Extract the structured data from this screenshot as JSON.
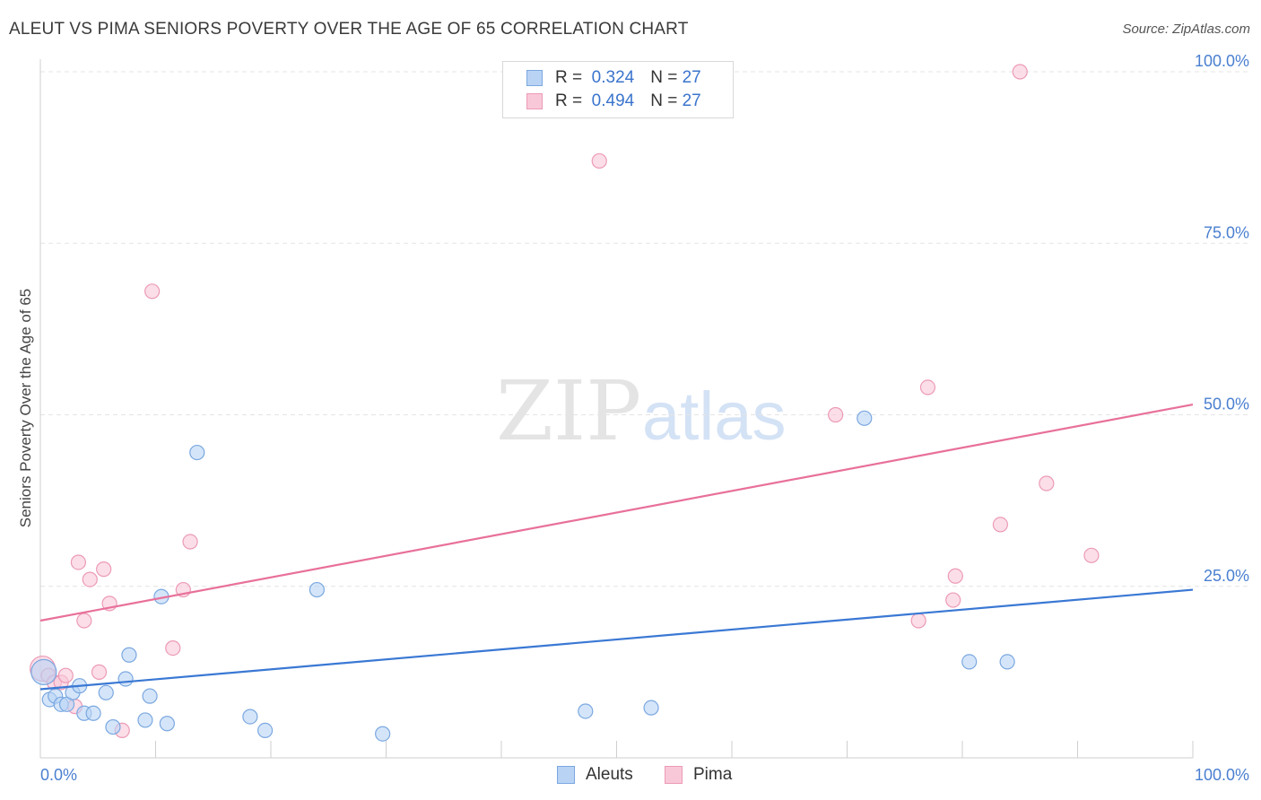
{
  "title": "ALEUT VS PIMA SENIORS POVERTY OVER THE AGE OF 65 CORRELATION CHART",
  "source": "Source: ZipAtlas.com",
  "legend": {
    "rows": [
      {
        "r_label": "R =",
        "r_value": "0.324",
        "n_label": "N =",
        "n_value": "27"
      },
      {
        "r_label": "R =",
        "r_value": "0.494",
        "n_label": "N =",
        "n_value": "27"
      }
    ]
  },
  "bottom_legend": {
    "aleuts": "Aleuts",
    "pima": "Pima"
  },
  "watermark": {
    "zip": "ZIP",
    "atlas": "atlas"
  },
  "colors": {
    "aleut_fill": "#b9d3f5",
    "aleut_stroke": "#7aa8e0",
    "aleut_line": "#3a78d4",
    "pima_fill": "#f9c8d8",
    "pima_stroke": "#ec9ab6",
    "pima_line": "#e8709a",
    "tick_text": "#4a7fd0",
    "grid": "#e4e4e4"
  },
  "chart_data": {
    "type": "scatter",
    "title": "ALEUT VS PIMA SENIORS POVERTY OVER THE AGE OF 65 CORRELATION CHART",
    "xlabel": "",
    "ylabel": "Seniors Poverty Over the Age of 65",
    "xlim": [
      0,
      100
    ],
    "ylim": [
      0,
      100
    ],
    "x_tick_labels": [
      "0.0%",
      "100.0%"
    ],
    "y_ticks": [
      25,
      50,
      75,
      100
    ],
    "y_tick_labels": [
      "25.0%",
      "50.0%",
      "75.0%",
      "100.0%"
    ],
    "grid": true,
    "series": [
      {
        "name": "Aleuts",
        "r": 0.324,
        "n": 27,
        "trend": {
          "x": [
            0,
            100
          ],
          "y": [
            10.0,
            24.5
          ]
        },
        "points": [
          {
            "x": 0.3,
            "y": 12.5
          },
          {
            "x": 0.8,
            "y": 8.5
          },
          {
            "x": 1.3,
            "y": 9.0
          },
          {
            "x": 1.8,
            "y": 7.8
          },
          {
            "x": 2.3,
            "y": 7.8
          },
          {
            "x": 2.8,
            "y": 9.5
          },
          {
            "x": 3.4,
            "y": 10.5
          },
          {
            "x": 3.8,
            "y": 6.5
          },
          {
            "x": 4.6,
            "y": 6.5
          },
          {
            "x": 5.7,
            "y": 9.5
          },
          {
            "x": 6.3,
            "y": 4.5
          },
          {
            "x": 7.4,
            "y": 11.5
          },
          {
            "x": 7.7,
            "y": 15.0
          },
          {
            "x": 9.1,
            "y": 5.5
          },
          {
            "x": 9.5,
            "y": 9.0
          },
          {
            "x": 10.5,
            "y": 23.5
          },
          {
            "x": 11.0,
            "y": 5.0
          },
          {
            "x": 13.6,
            "y": 44.5
          },
          {
            "x": 18.2,
            "y": 6.0
          },
          {
            "x": 19.5,
            "y": 4.0
          },
          {
            "x": 24.0,
            "y": 24.5
          },
          {
            "x": 29.7,
            "y": 3.5
          },
          {
            "x": 47.3,
            "y": 6.8
          },
          {
            "x": 53.0,
            "y": 7.3
          },
          {
            "x": 71.5,
            "y": 49.5
          },
          {
            "x": 80.6,
            "y": 14.0
          },
          {
            "x": 83.9,
            "y": 14.0
          }
        ]
      },
      {
        "name": "Pima",
        "r": 0.494,
        "n": 27,
        "trend": {
          "x": [
            0,
            100
          ],
          "y": [
            20.0,
            51.5
          ]
        },
        "points": [
          {
            "x": 0.2,
            "y": 13.0
          },
          {
            "x": 0.7,
            "y": 12.0
          },
          {
            "x": 1.2,
            "y": 11.0
          },
          {
            "x": 1.8,
            "y": 11.0
          },
          {
            "x": 2.2,
            "y": 12.0
          },
          {
            "x": 3.0,
            "y": 7.5
          },
          {
            "x": 3.3,
            "y": 28.5
          },
          {
            "x": 3.8,
            "y": 20.0
          },
          {
            "x": 4.3,
            "y": 26.0
          },
          {
            "x": 5.1,
            "y": 12.5
          },
          {
            "x": 5.5,
            "y": 27.5
          },
          {
            "x": 6.0,
            "y": 22.5
          },
          {
            "x": 7.1,
            "y": 4.0
          },
          {
            "x": 9.7,
            "y": 68.0
          },
          {
            "x": 11.5,
            "y": 16.0
          },
          {
            "x": 12.4,
            "y": 24.5
          },
          {
            "x": 13.0,
            "y": 31.5
          },
          {
            "x": 48.5,
            "y": 87.0
          },
          {
            "x": 69.0,
            "y": 50.0
          },
          {
            "x": 76.2,
            "y": 20.0
          },
          {
            "x": 77.0,
            "y": 54.0
          },
          {
            "x": 79.2,
            "y": 23.0
          },
          {
            "x": 79.4,
            "y": 26.5
          },
          {
            "x": 83.3,
            "y": 34.0
          },
          {
            "x": 85.0,
            "y": 100.0
          },
          {
            "x": 87.3,
            "y": 40.0
          },
          {
            "x": 91.2,
            "y": 29.5
          }
        ]
      }
    ]
  }
}
